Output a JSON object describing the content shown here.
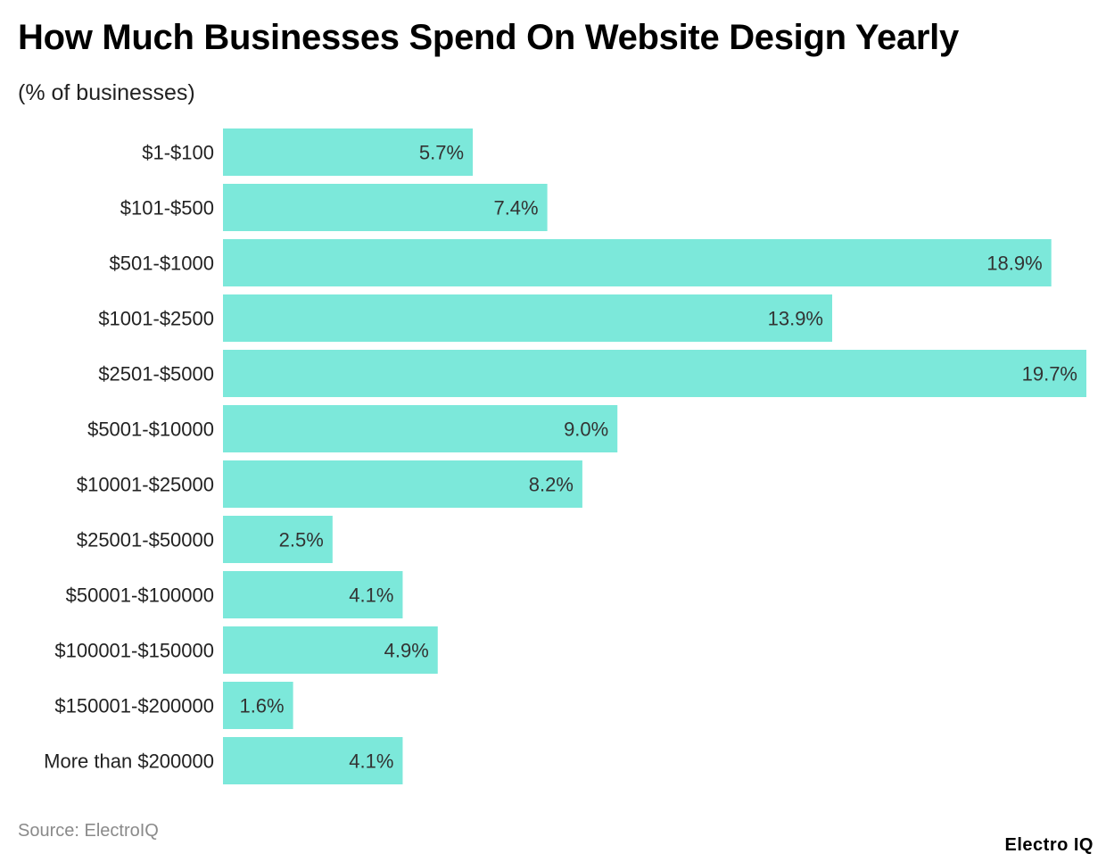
{
  "title": "How Much Businesses Spend On Website Design Yearly",
  "subtitle": "(% of businesses)",
  "source": "Source: ElectroIQ",
  "brand": "Electro IQ",
  "colors": {
    "bar": "#7ce8da",
    "text": "#222222"
  },
  "chart_data": {
    "type": "bar",
    "orientation": "horizontal",
    "title": "How Much Businesses Spend On Website Design Yearly",
    "subtitle": "(% of businesses)",
    "xlabel": "",
    "ylabel": "",
    "xlim": [
      0,
      19.7
    ],
    "grid": false,
    "legend": "none",
    "categories": [
      "$1-$100",
      "$101-$500",
      "$501-$1000",
      "$1001-$2500",
      "$2501-$5000",
      "$5001-$10000",
      "$10001-$25000",
      "$25001-$50000",
      "$50001-$100000",
      "$100001-$150000",
      "$150001-$200000",
      "More than $200000"
    ],
    "values": [
      5.7,
      7.4,
      18.9,
      13.9,
      19.7,
      9.0,
      8.2,
      2.5,
      4.1,
      4.9,
      1.6,
      4.1
    ],
    "value_labels": [
      "5.7%",
      "7.4%",
      "18.9%",
      "13.9%",
      "19.7%",
      "9.0%",
      "8.2%",
      "2.5%",
      "4.1%",
      "4.9%",
      "1.6%",
      "4.1%"
    ]
  }
}
